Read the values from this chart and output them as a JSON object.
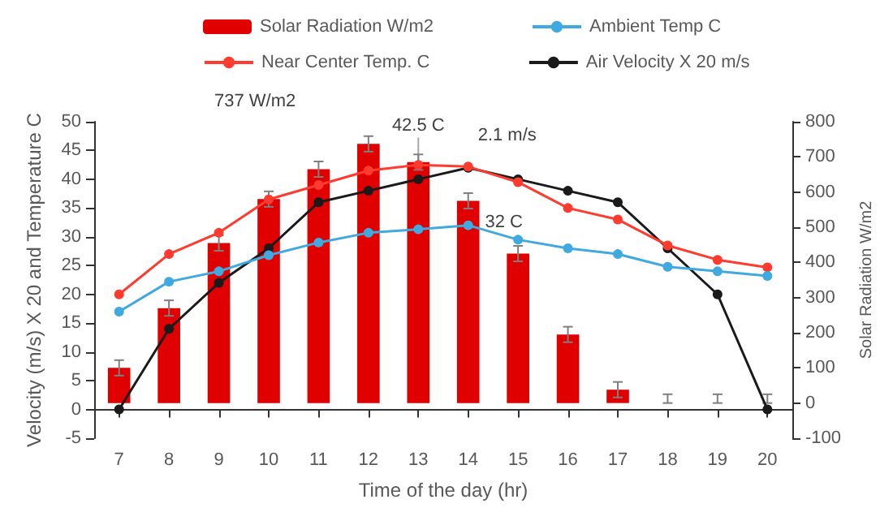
{
  "chart_data": {
    "type": "line",
    "xlabel": "Time of the day (hr)",
    "ylabel": "Velocity (m/s) X 20 and Temperature C",
    "y2label": "Solar Radiation W/m2",
    "categories": [
      "7",
      "8",
      "9",
      "10",
      "11",
      "12",
      "13",
      "14",
      "15",
      "16",
      "17",
      "18",
      "19",
      "20"
    ],
    "series": [
      {
        "name": "Solar Radiation W/m2",
        "type": "bar",
        "axis": "y2",
        "color": "#e00000",
        "values": [
          100,
          270,
          455,
          580,
          665,
          737,
          685,
          575,
          425,
          195,
          38,
          0,
          0,
          0
        ],
        "errors": [
          22,
          22,
          22,
          22,
          22,
          22,
          22,
          22,
          22,
          22,
          22,
          [
            0,
            25
          ],
          [
            0,
            25
          ],
          [
            0,
            25
          ]
        ]
      },
      {
        "name": "Ambient Temp C",
        "color": "#3fa9e0",
        "values": [
          17,
          22.2,
          24,
          26.8,
          29,
          30.7,
          31.3,
          32,
          29.5,
          28,
          27,
          24.8,
          24,
          23.2
        ]
      },
      {
        "name": "Near Center Temp. C",
        "color": "#ff3b2f",
        "values": [
          20,
          27,
          30.7,
          36.5,
          39,
          41.5,
          42.5,
          42.2,
          39.5,
          35,
          33,
          28.5,
          26,
          24.7
        ]
      },
      {
        "name": "Air Velocity X 20 m/s",
        "color": "#1a1a1a",
        "values": [
          0,
          14,
          22,
          28,
          36,
          38,
          40,
          42,
          40,
          38,
          36,
          28,
          20,
          0
        ]
      }
    ],
    "ylim": [
      -5,
      50
    ],
    "yticks": [
      -5,
      0,
      5,
      10,
      15,
      20,
      25,
      30,
      35,
      40,
      45,
      50
    ],
    "y2lim": [
      -100,
      800
    ],
    "y2ticks": [
      -100,
      0,
      100,
      200,
      300,
      400,
      500,
      600,
      700,
      800
    ],
    "annotations": [
      "737 W/m2",
      {
        "text": "42.5 C",
        "x": "13",
        "y": 42.5
      },
      {
        "text": "2.1 m/s",
        "x": "14",
        "y": 42
      },
      {
        "text": "32 C",
        "x": "14",
        "y": 32
      }
    ],
    "marker": "circle",
    "line_style": "solid",
    "grid": false,
    "legend": "top"
  }
}
